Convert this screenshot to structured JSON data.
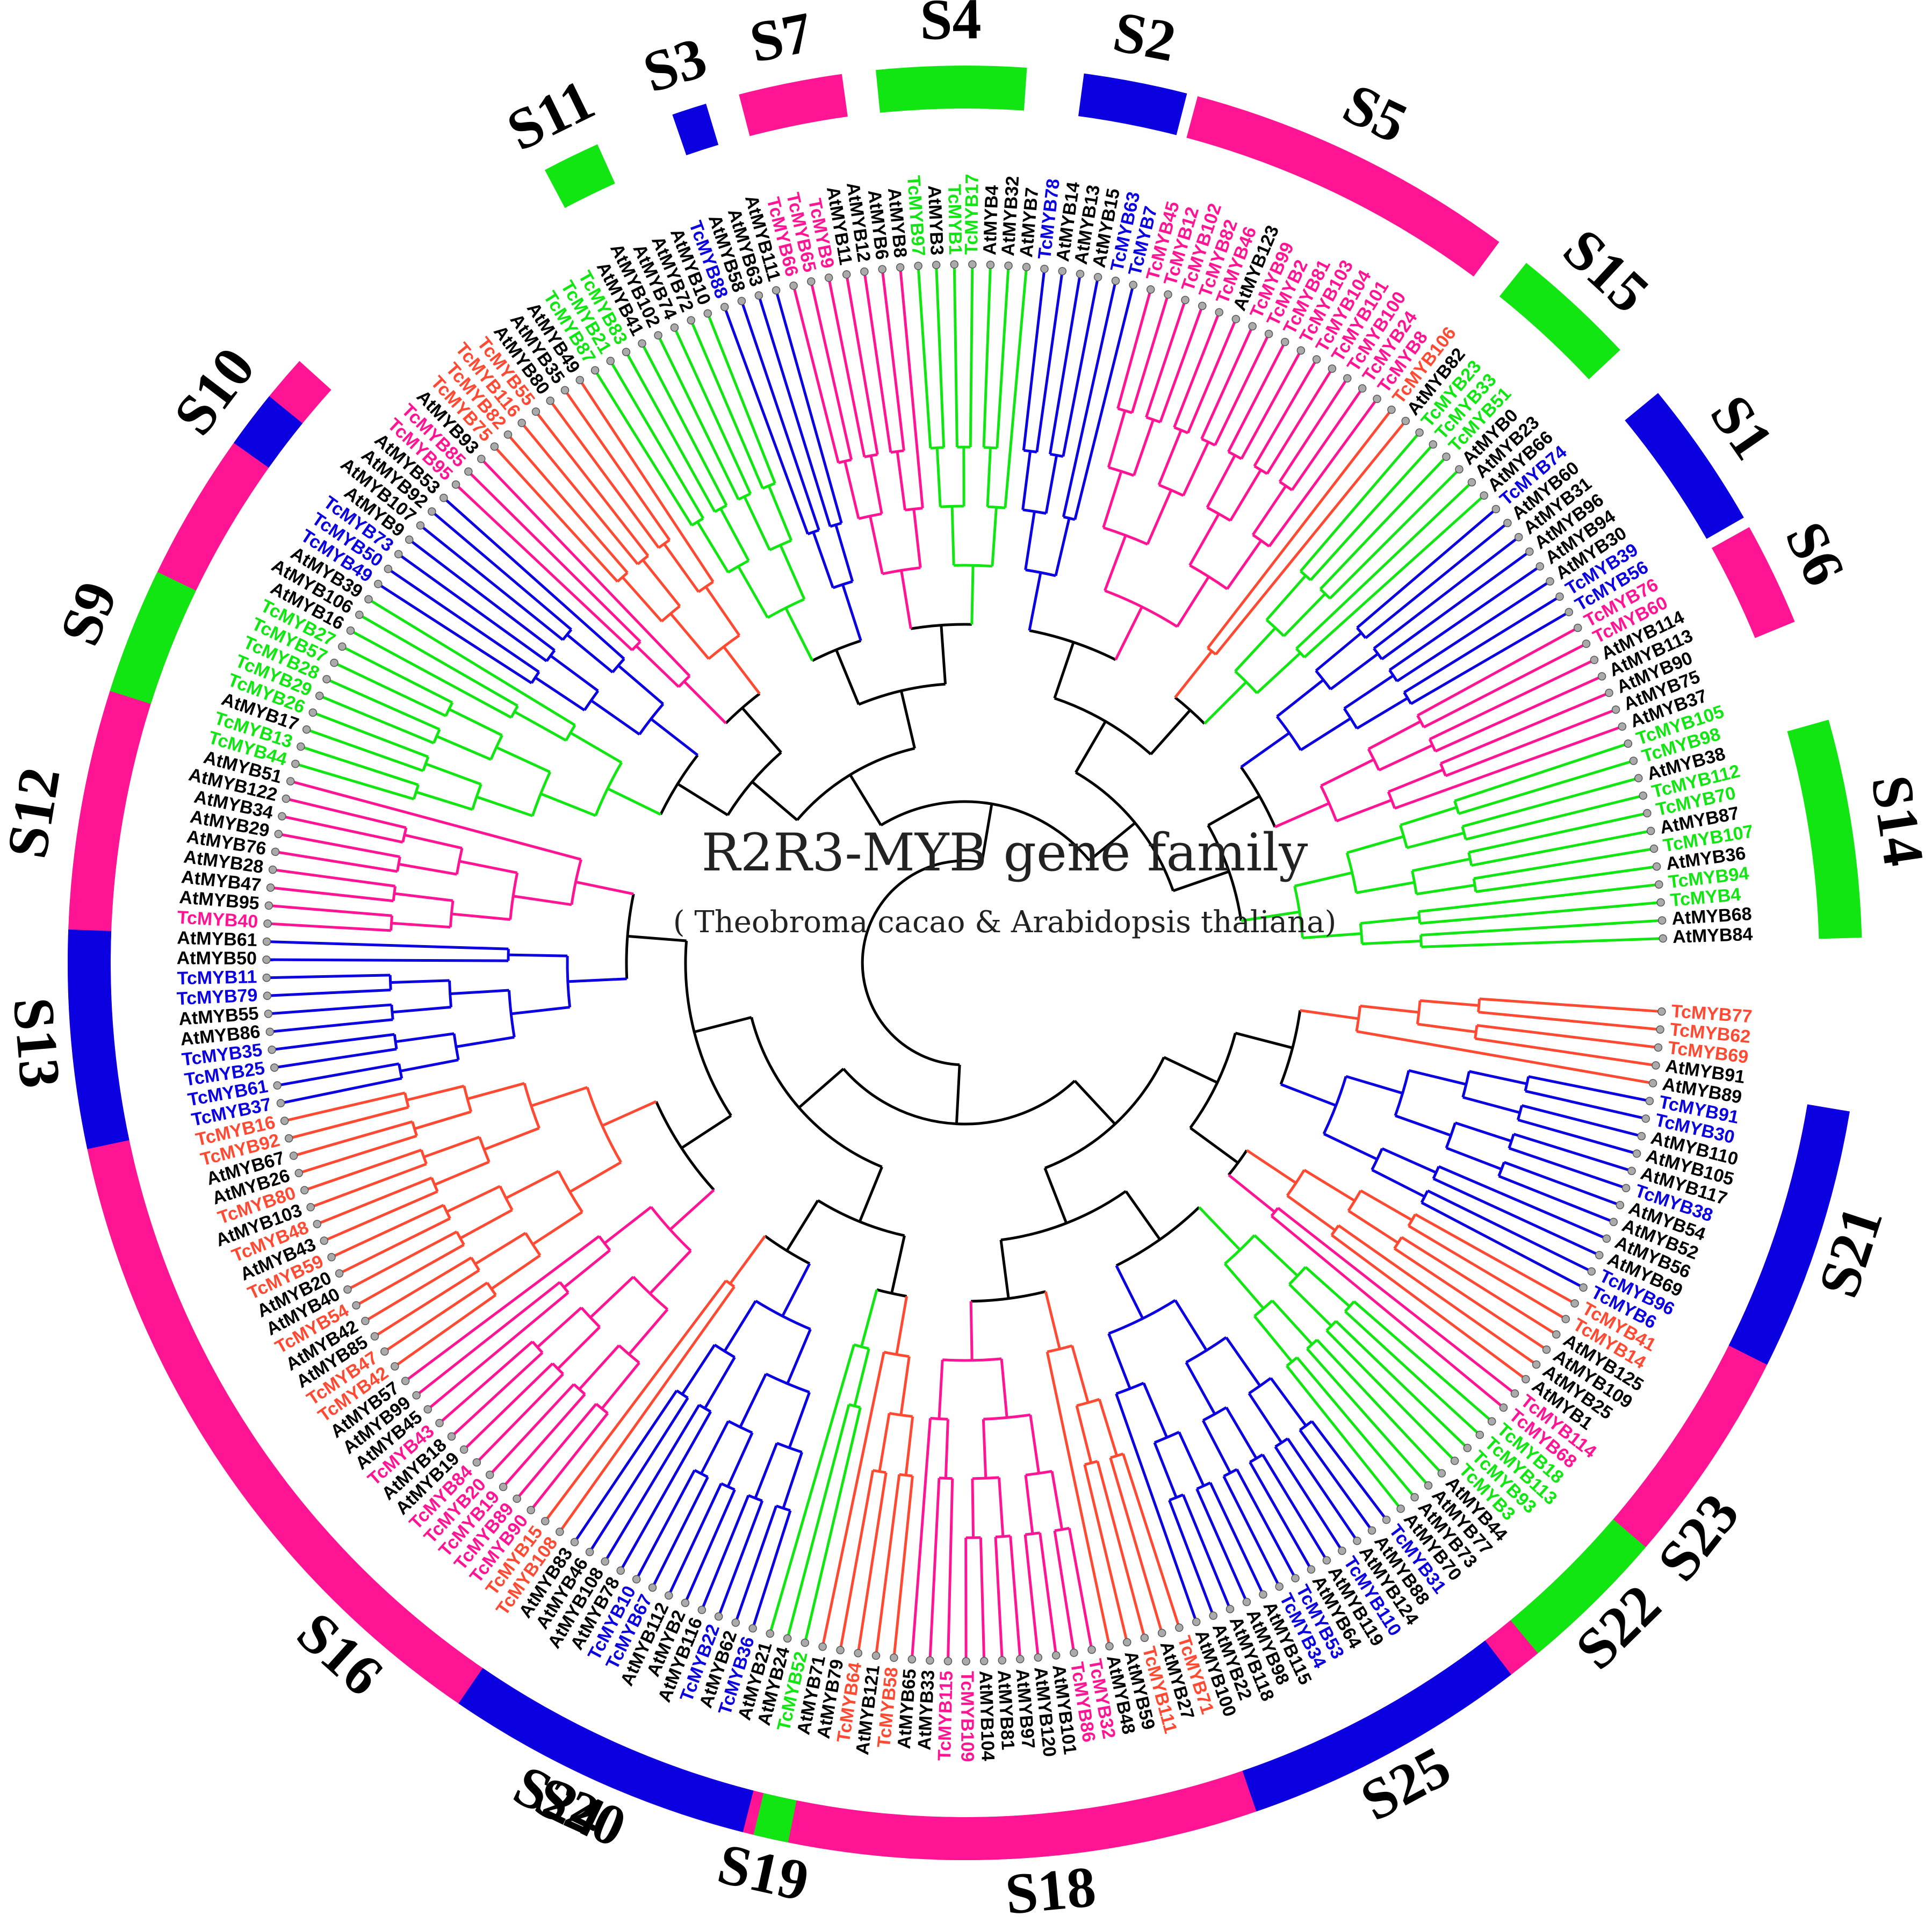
{
  "title": "R2R3-MYB gene family",
  "subtitle": "( Theobroma cacao & Arabidopsis thaliana)",
  "colors": {
    "red": "#ff4a33",
    "blue": "#0a00e0",
    "green": "#12e612",
    "magenta": "#ff1493",
    "black": "#000000"
  },
  "subfamilies": [
    {
      "label": "S14",
      "color": "green",
      "start": "AtMYB38",
      "end": "AtMYB84"
    },
    {
      "label": "S6",
      "color": "magenta",
      "start": "TcMYB76",
      "end": "AtMYB90"
    },
    {
      "label": "S1",
      "color": "blue",
      "start": "AtMYB60",
      "end": "TcMYB56"
    },
    {
      "label": "S15",
      "color": "green",
      "start": "AtMYB82",
      "end": "AtMYB23"
    },
    {
      "label": "S5",
      "color": "magenta",
      "start": "TcMYB45",
      "end": "TcMYB8"
    },
    {
      "label": "S2",
      "color": "blue",
      "start": "AtMYB14",
      "end": "TcMYB7"
    },
    {
      "label": "S4",
      "color": "green",
      "start": "AtMYB8",
      "end": "AtMYB32"
    },
    {
      "label": "S7",
      "color": "magenta",
      "start": "TcMYB66",
      "end": "AtMYB12"
    },
    {
      "label": "S3",
      "color": "blue",
      "start": "AtMYB63",
      "end": "AtMYB58"
    },
    {
      "label": "S11",
      "color": "green",
      "start": "AtMYB41",
      "end": "AtMYB74"
    },
    {
      "label": "S24",
      "color": "magenta",
      "start": "AtMYB53",
      "end": "AtMYB89"
    },
    {
      "label": "S10",
      "color": "blue",
      "start": "TcMYB73",
      "end": "AtMYB107"
    },
    {
      "label": "S9",
      "color": "green",
      "start": "TcMYB57",
      "end": "TcMYB13"
    },
    {
      "label": "S12",
      "color": "magenta",
      "start": "AtMYB51",
      "end": "TcMYB40"
    },
    {
      "label": "S13",
      "color": "blue",
      "start": "AtMYB61",
      "end": "TcMYB37"
    },
    {
      "label": "S16",
      "color": "magenta",
      "start": "TcMYB43",
      "end": "TcMYB108"
    },
    {
      "label": "S20",
      "color": "blue",
      "start": "AtMYB83",
      "end": "AtMYB24"
    },
    {
      "label": "S19",
      "color": "green",
      "start": "TcMYB52",
      "end": "AtMYB71"
    },
    {
      "label": "S18",
      "color": "magenta",
      "start": "TcMYB115",
      "end": "AtMYB48"
    },
    {
      "label": "S25",
      "color": "blue",
      "start": "AtMYB100",
      "end": "TcMYB31"
    },
    {
      "label": "S22",
      "color": "green",
      "start": "AtMYB73",
      "end": "TcMYB18"
    },
    {
      "label": "S23",
      "color": "magenta",
      "start": "TcMYB68",
      "end": "AtMYB1"
    },
    {
      "label": "S21",
      "color": "blue",
      "start": "AtMYB89",
      "end": "TcMYB96"
    }
  ],
  "leaves": [
    {
      "name": "TcMYB77",
      "color": "red"
    },
    {
      "name": "TcMYB62",
      "color": "red"
    },
    {
      "name": "TcMYB69",
      "color": "red"
    },
    {
      "name": "AtMYB91",
      "color": "black"
    },
    {
      "name": "AtMYB89",
      "color": "black"
    },
    {
      "name": "TcMYB91",
      "color": "blue"
    },
    {
      "name": "TcMYB30",
      "color": "blue"
    },
    {
      "name": "AtMYB110",
      "color": "black"
    },
    {
      "name": "AtMYB105",
      "color": "black"
    },
    {
      "name": "AtMYB117",
      "color": "black"
    },
    {
      "name": "TcMYB38",
      "color": "blue"
    },
    {
      "name": "AtMYB54",
      "color": "black"
    },
    {
      "name": "AtMYB52",
      "color": "black"
    },
    {
      "name": "AtMYB56",
      "color": "black"
    },
    {
      "name": "AtMYB69",
      "color": "black"
    },
    {
      "name": "TcMYB96",
      "color": "blue"
    },
    {
      "name": "TcMYB6",
      "color": "blue"
    },
    {
      "name": "TcMYB41",
      "color": "red"
    },
    {
      "name": "TcMYB14",
      "color": "red"
    },
    {
      "name": "AtMYB125",
      "color": "black"
    },
    {
      "name": "AtMYB109",
      "color": "black"
    },
    {
      "name": "AtMYB25",
      "color": "black"
    },
    {
      "name": "AtMYB1",
      "color": "black"
    },
    {
      "name": "TcMYB114",
      "color": "magenta"
    },
    {
      "name": "TcMYB68",
      "color": "magenta"
    },
    {
      "name": "TcMYB18",
      "color": "green"
    },
    {
      "name": "TcMYB113",
      "color": "green"
    },
    {
      "name": "TcMYB93",
      "color": "green"
    },
    {
      "name": "TcMYB3",
      "color": "green"
    },
    {
      "name": "AtMYB44",
      "color": "black"
    },
    {
      "name": "AtMYB77",
      "color": "black"
    },
    {
      "name": "AtMYB73",
      "color": "black"
    },
    {
      "name": "AtMYB70",
      "color": "black"
    },
    {
      "name": "TcMYB31",
      "color": "blue"
    },
    {
      "name": "AtMYB88",
      "color": "black"
    },
    {
      "name": "AtMYB124",
      "color": "black"
    },
    {
      "name": "TcMYB110",
      "color": "blue"
    },
    {
      "name": "AtMYB119",
      "color": "black"
    },
    {
      "name": "AtMYB64",
      "color": "black"
    },
    {
      "name": "TcMYB53",
      "color": "blue"
    },
    {
      "name": "TcMYB34",
      "color": "blue"
    },
    {
      "name": "AtMYB115",
      "color": "black"
    },
    {
      "name": "AtMYB98",
      "color": "black"
    },
    {
      "name": "AtMYB118",
      "color": "black"
    },
    {
      "name": "AtMYB22",
      "color": "black"
    },
    {
      "name": "AtMYB100",
      "color": "black"
    },
    {
      "name": "TcMYB71",
      "color": "red"
    },
    {
      "name": "AtMYB27",
      "color": "black"
    },
    {
      "name": "TcMYB111",
      "color": "red"
    },
    {
      "name": "AtMYB59",
      "color": "black"
    },
    {
      "name": "AtMYB48",
      "color": "black"
    },
    {
      "name": "TcMYB32",
      "color": "magenta"
    },
    {
      "name": "TcMYB86",
      "color": "magenta"
    },
    {
      "name": "AtMYB101",
      "color": "black"
    },
    {
      "name": "AtMYB120",
      "color": "black"
    },
    {
      "name": "AtMYB97",
      "color": "black"
    },
    {
      "name": "AtMYB81",
      "color": "black"
    },
    {
      "name": "AtMYB104",
      "color": "black"
    },
    {
      "name": "TcMYB109",
      "color": "magenta"
    },
    {
      "name": "TcMYB115",
      "color": "magenta"
    },
    {
      "name": "AtMYB33",
      "color": "black"
    },
    {
      "name": "AtMYB65",
      "color": "black"
    },
    {
      "name": "TcMYB58",
      "color": "red"
    },
    {
      "name": "AtMYB121",
      "color": "black"
    },
    {
      "name": "TcMYB64",
      "color": "red"
    },
    {
      "name": "AtMYB79",
      "color": "black"
    },
    {
      "name": "AtMYB71",
      "color": "black"
    },
    {
      "name": "TcMYB52",
      "color": "green"
    },
    {
      "name": "AtMYB24",
      "color": "black"
    },
    {
      "name": "AtMYB21",
      "color": "black"
    },
    {
      "name": "TcMYB36",
      "color": "blue"
    },
    {
      "name": "AtMYB62",
      "color": "black"
    },
    {
      "name": "TcMYB22",
      "color": "blue"
    },
    {
      "name": "AtMYB116",
      "color": "black"
    },
    {
      "name": "AtMYB2",
      "color": "black"
    },
    {
      "name": "AtMYB112",
      "color": "black"
    },
    {
      "name": "TcMYB67",
      "color": "blue"
    },
    {
      "name": "TcMYB10",
      "color": "blue"
    },
    {
      "name": "AtMYB78",
      "color": "black"
    },
    {
      "name": "AtMYB108",
      "color": "black"
    },
    {
      "name": "AtMYB46",
      "color": "black"
    },
    {
      "name": "AtMYB83",
      "color": "black"
    },
    {
      "name": "TcMYB108",
      "color": "red"
    },
    {
      "name": "TcMYB15",
      "color": "red"
    },
    {
      "name": "TcMYB90",
      "color": "magenta"
    },
    {
      "name": "TcMYB89",
      "color": "magenta"
    },
    {
      "name": "TcMYB19",
      "color": "magenta"
    },
    {
      "name": "TcMYB20",
      "color": "magenta"
    },
    {
      "name": "TcMYB84",
      "color": "magenta"
    },
    {
      "name": "AtMYB19",
      "color": "black"
    },
    {
      "name": "AtMYB18",
      "color": "black"
    },
    {
      "name": "TcMYB43",
      "color": "magenta"
    },
    {
      "name": "AtMYB45",
      "color": "black"
    },
    {
      "name": "AtMYB99",
      "color": "black"
    },
    {
      "name": "AtMYB57",
      "color": "black"
    },
    {
      "name": "TcMYB42",
      "color": "red"
    },
    {
      "name": "TcMYB47",
      "color": "red"
    },
    {
      "name": "AtMYB85",
      "color": "black"
    },
    {
      "name": "AtMYB42",
      "color": "black"
    },
    {
      "name": "TcMYB54",
      "color": "red"
    },
    {
      "name": "AtMYB40",
      "color": "black"
    },
    {
      "name": "AtMYB20",
      "color": "black"
    },
    {
      "name": "TcMYB59",
      "color": "red"
    },
    {
      "name": "AtMYB43",
      "color": "black"
    },
    {
      "name": "TcMYB48",
      "color": "red"
    },
    {
      "name": "AtMYB103",
      "color": "black"
    },
    {
      "name": "TcMYB80",
      "color": "red"
    },
    {
      "name": "AtMYB26",
      "color": "black"
    },
    {
      "name": "AtMYB67",
      "color": "black"
    },
    {
      "name": "TcMYB92",
      "color": "red"
    },
    {
      "name": "TcMYB16",
      "color": "red"
    },
    {
      "name": "TcMYB37",
      "color": "blue"
    },
    {
      "name": "TcMYB61",
      "color": "blue"
    },
    {
      "name": "TcMYB25",
      "color": "blue"
    },
    {
      "name": "TcMYB35",
      "color": "blue"
    },
    {
      "name": "AtMYB86",
      "color": "black"
    },
    {
      "name": "AtMYB55",
      "color": "black"
    },
    {
      "name": "TcMYB79",
      "color": "blue"
    },
    {
      "name": "TcMYB11",
      "color": "blue"
    },
    {
      "name": "AtMYB50",
      "color": "black"
    },
    {
      "name": "AtMYB61",
      "color": "black"
    },
    {
      "name": "TcMYB40",
      "color": "magenta"
    },
    {
      "name": "AtMYB95",
      "color": "black"
    },
    {
      "name": "AtMYB47",
      "color": "black"
    },
    {
      "name": "AtMYB28",
      "color": "black"
    },
    {
      "name": "AtMYB76",
      "color": "black"
    },
    {
      "name": "AtMYB29",
      "color": "black"
    },
    {
      "name": "AtMYB34",
      "color": "black"
    },
    {
      "name": "AtMYB122",
      "color": "black"
    },
    {
      "name": "AtMYB51",
      "color": "black"
    },
    {
      "name": "TcMYB44",
      "color": "green"
    },
    {
      "name": "TcMYB13",
      "color": "green"
    },
    {
      "name": "AtMYB17",
      "color": "black"
    },
    {
      "name": "TcMYB26",
      "color": "green"
    },
    {
      "name": "TcMYB29",
      "color": "green"
    },
    {
      "name": "TcMYB28",
      "color": "green"
    },
    {
      "name": "TcMYB57",
      "color": "green"
    },
    {
      "name": "TcMYB27",
      "color": "green"
    },
    {
      "name": "AtMYB16",
      "color": "black"
    },
    {
      "name": "AtMYB106",
      "color": "black"
    },
    {
      "name": "AtMYB39",
      "color": "black"
    },
    {
      "name": "TcMYB49",
      "color": "blue"
    },
    {
      "name": "TcMYB50",
      "color": "blue"
    },
    {
      "name": "TcMYB73",
      "color": "blue"
    },
    {
      "name": "AtMYB9",
      "color": "black"
    },
    {
      "name": "AtMYB107",
      "color": "black"
    },
    {
      "name": "AtMYB92",
      "color": "black"
    },
    {
      "name": "AtMYB53",
      "color": "black"
    },
    {
      "name": "TcMYB95",
      "color": "magenta"
    },
    {
      "name": "TcMYB85",
      "color": "magenta"
    },
    {
      "name": "AtMYB93",
      "color": "black"
    },
    {
      "name": "TcMYB75",
      "color": "red"
    },
    {
      "name": "TcMYB82",
      "color": "red"
    },
    {
      "name": "TcMYB116",
      "color": "red"
    },
    {
      "name": "TcMYB55",
      "color": "red"
    },
    {
      "name": "AtMYB80",
      "color": "black"
    },
    {
      "name": "AtMYB35",
      "color": "black"
    },
    {
      "name": "AtMYB49",
      "color": "black"
    },
    {
      "name": "TcMYB87",
      "color": "green"
    },
    {
      "name": "TcMYB21",
      "color": "green"
    },
    {
      "name": "TcMYB83",
      "color": "green"
    },
    {
      "name": "AtMYB41",
      "color": "black"
    },
    {
      "name": "AtMYB102",
      "color": "black"
    },
    {
      "name": "AtMYB74",
      "color": "black"
    },
    {
      "name": "AtMYB72",
      "color": "black"
    },
    {
      "name": "AtMYB10",
      "color": "black"
    },
    {
      "name": "TcMYB88",
      "color": "blue"
    },
    {
      "name": "AtMYB58",
      "color": "black"
    },
    {
      "name": "AtMYB63",
      "color": "black"
    },
    {
      "name": "AtMYB111",
      "color": "black"
    },
    {
      "name": "TcMYB66",
      "color": "magenta"
    },
    {
      "name": "TcMYB65",
      "color": "magenta"
    },
    {
      "name": "TcMYB9",
      "color": "magenta"
    },
    {
      "name": "AtMYB11",
      "color": "black"
    },
    {
      "name": "AtMYB12",
      "color": "black"
    },
    {
      "name": "AtMYB6",
      "color": "black"
    },
    {
      "name": "AtMYB8",
      "color": "black"
    },
    {
      "name": "TcMYB97",
      "color": "green"
    },
    {
      "name": "AtMYB3",
      "color": "black"
    },
    {
      "name": "TcMYB1",
      "color": "green"
    },
    {
      "name": "TcMYB17",
      "color": "green"
    },
    {
      "name": "AtMYB4",
      "color": "black"
    },
    {
      "name": "AtMYB32",
      "color": "black"
    },
    {
      "name": "AtMYB7",
      "color": "black"
    },
    {
      "name": "TcMYB78",
      "color": "blue"
    },
    {
      "name": "AtMYB14",
      "color": "black"
    },
    {
      "name": "AtMYB13",
      "color": "black"
    },
    {
      "name": "AtMYB15",
      "color": "black"
    },
    {
      "name": "TcMYB63",
      "color": "blue"
    },
    {
      "name": "TcMYB7",
      "color": "blue"
    },
    {
      "name": "TcMYB45",
      "color": "magenta"
    },
    {
      "name": "TcMYB12",
      "color": "magenta"
    },
    {
      "name": "TcMYB102",
      "color": "magenta"
    },
    {
      "name": "TcMYB82",
      "color": "magenta"
    },
    {
      "name": "TcMYB46",
      "color": "magenta"
    },
    {
      "name": "AtMYB123",
      "color": "black"
    },
    {
      "name": "TcMYB99",
      "color": "magenta"
    },
    {
      "name": "TcMYB2",
      "color": "magenta"
    },
    {
      "name": "TcMYB81",
      "color": "magenta"
    },
    {
      "name": "TcMYB103",
      "color": "magenta"
    },
    {
      "name": "TcMYB104",
      "color": "magenta"
    },
    {
      "name": "TcMYB101",
      "color": "magenta"
    },
    {
      "name": "TcMYB100",
      "color": "magenta"
    },
    {
      "name": "TcMYB24",
      "color": "magenta"
    },
    {
      "name": "TcMYB8",
      "color": "magenta"
    },
    {
      "name": "TcMYB106",
      "color": "red"
    },
    {
      "name": "AtMYB82",
      "color": "black"
    },
    {
      "name": "TcMYB23",
      "color": "green"
    },
    {
      "name": "TcMYB33",
      "color": "green"
    },
    {
      "name": "TcMYB51",
      "color": "green"
    },
    {
      "name": "AtMYB0",
      "color": "black"
    },
    {
      "name": "AtMYB23",
      "color": "black"
    },
    {
      "name": "AtMYB66",
      "color": "black"
    },
    {
      "name": "TcMYB74",
      "color": "blue"
    },
    {
      "name": "AtMYB60",
      "color": "black"
    },
    {
      "name": "AtMYB31",
      "color": "black"
    },
    {
      "name": "AtMYB96",
      "color": "black"
    },
    {
      "name": "AtMYB94",
      "color": "black"
    },
    {
      "name": "AtMYB30",
      "color": "black"
    },
    {
      "name": "TcMYB39",
      "color": "blue"
    },
    {
      "name": "TcMYB56",
      "color": "blue"
    },
    {
      "name": "TcMYB76",
      "color": "magenta"
    },
    {
      "name": "TcMYB60",
      "color": "magenta"
    },
    {
      "name": "AtMYB114",
      "color": "black"
    },
    {
      "name": "AtMYB113",
      "color": "black"
    },
    {
      "name": "AtMYB90",
      "color": "black"
    },
    {
      "name": "AtMYB75",
      "color": "black"
    },
    {
      "name": "AtMYB37",
      "color": "black"
    },
    {
      "name": "TcMYB105",
      "color": "green"
    },
    {
      "name": "TcMYB98",
      "color": "green"
    },
    {
      "name": "AtMYB38",
      "color": "black"
    },
    {
      "name": "TcMYB112",
      "color": "green"
    },
    {
      "name": "TcMYB70",
      "color": "green"
    },
    {
      "name": "AtMYB87",
      "color": "black"
    },
    {
      "name": "TcMYB107",
      "color": "green"
    },
    {
      "name": "AtMYB36",
      "color": "black"
    },
    {
      "name": "TcMYB94",
      "color": "green"
    },
    {
      "name": "TcMYB4",
      "color": "green"
    },
    {
      "name": "AtMYB68",
      "color": "black"
    },
    {
      "name": "AtMYB84",
      "color": "black"
    }
  ]
}
